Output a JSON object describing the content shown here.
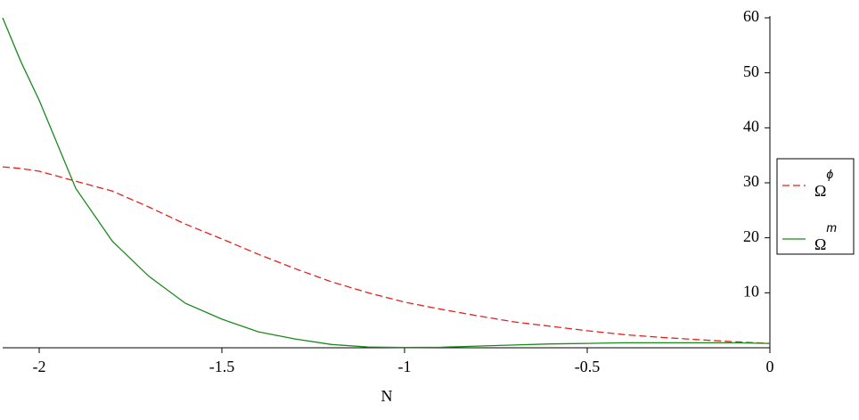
{
  "chart_data": {
    "type": "line",
    "x_label": "N",
    "x": [
      -2.1,
      -2.05,
      -2.0,
      -1.9,
      -1.8,
      -1.7,
      -1.6,
      -1.5,
      -1.4,
      -1.3,
      -1.2,
      -1.1,
      -1.0,
      -0.9,
      -0.8,
      -0.7,
      -0.6,
      -0.5,
      -0.4,
      -0.3,
      -0.2,
      -0.1,
      0
    ],
    "series": [
      {
        "name": "Ωϕ",
        "color": "#e8201c",
        "dash": true,
        "values": [
          32.9,
          32.6,
          32.1,
          30.3,
          28.5,
          25.6,
          22.5,
          19.8,
          17.0,
          14.4,
          12.0,
          10.0,
          8.3,
          7.0,
          5.8,
          4.7,
          3.9,
          3.1,
          2.4,
          1.9,
          1.5,
          1.1,
          0.8
        ]
      },
      {
        "name": "Ωm",
        "color": "#1a8a1a",
        "dash": false,
        "values": [
          60,
          52,
          45,
          29,
          19.4,
          13,
          8.1,
          5.2,
          2.9,
          1.6,
          0.6,
          0.15,
          0.05,
          0.1,
          0.3,
          0.5,
          0.7,
          0.8,
          0.9,
          0.9,
          0.9,
          0.9,
          0.8
        ]
      }
    ],
    "xlim": [
      -2.1,
      0
    ],
    "xticks": [
      -2,
      -1.5,
      -1,
      -0.5,
      0
    ],
    "ylim": [
      0,
      60
    ],
    "yticks": [
      10,
      20,
      30,
      40,
      50,
      60
    ],
    "legend": "right"
  }
}
